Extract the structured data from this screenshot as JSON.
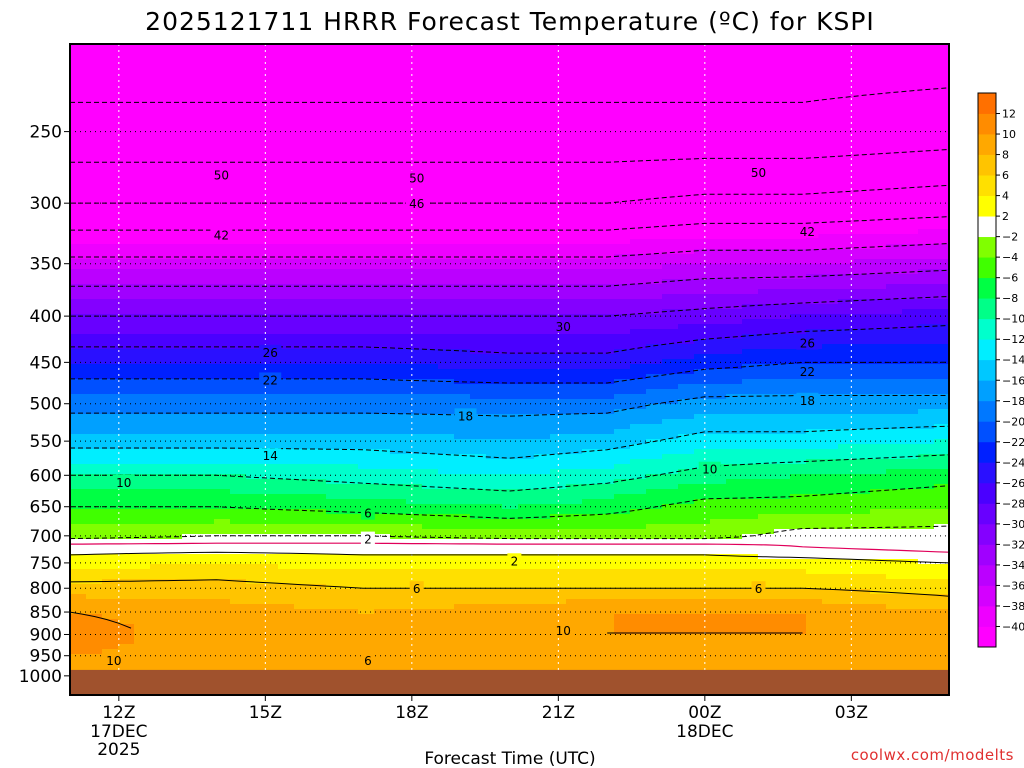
{
  "chart_data": {
    "type": "heatmap",
    "title": "2025121711 HRRR Forecast Temperature (ºC) for KSPI",
    "xlabel": "Forecast Time (UTC)",
    "ylabel": "",
    "credit": "coolwx.com/modelts",
    "x_range_hours": [
      -1,
      17
    ],
    "x_ticks": [
      {
        "h": 0,
        "label": "12Z",
        "sub1": "17DEC",
        "sub2": "2025"
      },
      {
        "h": 3,
        "label": "15Z",
        "sub1": "",
        "sub2": ""
      },
      {
        "h": 6,
        "label": "18Z",
        "sub1": "",
        "sub2": ""
      },
      {
        "h": 9,
        "label": "21Z",
        "sub1": "",
        "sub2": ""
      },
      {
        "h": 12,
        "label": "00Z",
        "sub1": "18DEC",
        "sub2": ""
      },
      {
        "h": 15,
        "label": "03Z",
        "sub1": "",
        "sub2": ""
      }
    ],
    "y_scale": "log",
    "y_range_hpa": [
      1050,
      200
    ],
    "y_ticks": [
      250,
      300,
      350,
      400,
      450,
      500,
      550,
      600,
      650,
      700,
      750,
      800,
      850,
      900,
      950,
      1000
    ],
    "surface_pressure_hpa": 985,
    "colorbar": {
      "levels": [
        -40,
        -38,
        -36,
        -34,
        -32,
        -30,
        -28,
        -26,
        -24,
        -22,
        -20,
        -18,
        -16,
        -14,
        -12,
        -10,
        -8,
        -6,
        -4,
        -2,
        2,
        4,
        6,
        8,
        10,
        12
      ],
      "colors": [
        "#ff00ff",
        "#ee00ff",
        "#d400ff",
        "#bb00ff",
        "#a000ff",
        "#8400ff",
        "#6800ff",
        "#4a00ff",
        "#2a10ff",
        "#0020ff",
        "#0050ff",
        "#0078ff",
        "#00a0ff",
        "#00c8ff",
        "#00eeff",
        "#00ffcc",
        "#00ff88",
        "#00ff44",
        "#40ff00",
        "#80ff00",
        "#ffffff",
        "#ffff00",
        "#ffe000",
        "#ffc400",
        "#ffa800",
        "#ff8c00",
        "#ff7000"
      ],
      "tick_labels": [
        "−40",
        "−38",
        "−36",
        "−34",
        "−32",
        "−30",
        "−28",
        "−26",
        "−24",
        "−22",
        "−20",
        "−18",
        "−16",
        "−14",
        "−12",
        "−10",
        "−8",
        "−6",
        "−4",
        "−2",
        "2",
        "4",
        "6",
        "8",
        "10",
        "12"
      ]
    },
    "profiles": {
      "hours": [
        -1,
        2,
        5,
        8,
        10,
        12,
        14,
        17
      ],
      "series": [
        {
          "p": 1000,
          "t": [
            10,
            10,
            9,
            9,
            9,
            9,
            9,
            9
          ]
        },
        {
          "p": 950,
          "t": [
            10,
            9,
            9,
            9,
            9,
            9,
            9,
            8
          ]
        },
        {
          "p": 900,
          "t": [
            11,
            9,
            8,
            9,
            10,
            10,
            10,
            8
          ]
        },
        {
          "p": 850,
          "t": [
            10,
            9,
            8,
            9,
            10,
            10,
            10,
            8
          ]
        },
        {
          "p": 800,
          "t": [
            7,
            7,
            6,
            6,
            6,
            6,
            6,
            5
          ]
        },
        {
          "p": 750,
          "t": [
            3,
            4,
            3,
            3,
            3,
            3,
            3,
            2
          ]
        },
        {
          "p": 720,
          "t": [
            1,
            1,
            1,
            1,
            1,
            1,
            0,
            -1
          ]
        },
        {
          "p": 700,
          "t": [
            -3,
            -2,
            -2,
            -3,
            -3,
            -3,
            -1,
            -1
          ]
        },
        {
          "p": 650,
          "t": [
            -6,
            -6,
            -7,
            -8,
            -7,
            -5,
            -5,
            -4
          ]
        },
        {
          "p": 600,
          "t": [
            -10,
            -10,
            -11,
            -12,
            -11,
            -9,
            -8,
            -7
          ]
        },
        {
          "p": 550,
          "t": [
            -15,
            -15,
            -15,
            -16,
            -15,
            -13,
            -13,
            -12
          ]
        },
        {
          "p": 500,
          "t": [
            -19,
            -19,
            -19,
            -19,
            -19,
            -17,
            -17,
            -17
          ]
        },
        {
          "p": 450,
          "t": [
            -24,
            -24,
            -24,
            -25,
            -25,
            -23,
            -22,
            -22
          ]
        },
        {
          "p": 400,
          "t": [
            -30,
            -30,
            -30,
            -30,
            -30,
            -29,
            -28,
            -27
          ]
        },
        {
          "p": 350,
          "t": [
            -37,
            -37,
            -37,
            -37,
            -37,
            -36,
            -36,
            -35
          ]
        },
        {
          "p": 300,
          "t": [
            -46,
            -46,
            -46,
            -46,
            -46,
            -45,
            -45,
            -44
          ]
        },
        {
          "p": 250,
          "t": [
            -53,
            -53,
            -53,
            -53,
            -53,
            -53,
            -53,
            -52
          ]
        },
        {
          "p": 200,
          "t": [
            -56,
            -56,
            -56,
            -56,
            -56,
            -56,
            -56,
            -56
          ]
        }
      ]
    },
    "contour_labels": [
      {
        "text": "50",
        "h": 2.1,
        "p": 279
      },
      {
        "text": "50",
        "h": 6.1,
        "p": 281
      },
      {
        "text": "50",
        "h": 13.1,
        "p": 277
      },
      {
        "text": "46",
        "h": 6.1,
        "p": 300
      },
      {
        "text": "42",
        "h": 2.1,
        "p": 325
      },
      {
        "text": "42",
        "h": 14.1,
        "p": 322
      },
      {
        "text": "30",
        "h": 9.1,
        "p": 410
      },
      {
        "text": "26",
        "h": 3.1,
        "p": 438
      },
      {
        "text": "26",
        "h": 14.1,
        "p": 428
      },
      {
        "text": "22",
        "h": 3.1,
        "p": 470
      },
      {
        "text": "22",
        "h": 14.1,
        "p": 460
      },
      {
        "text": "18",
        "h": 7.1,
        "p": 515
      },
      {
        "text": "18",
        "h": 14.1,
        "p": 495
      },
      {
        "text": "14",
        "h": 3.1,
        "p": 570
      },
      {
        "text": "10",
        "h": 0.1,
        "p": 610
      },
      {
        "text": "10",
        "h": 12.1,
        "p": 590
      },
      {
        "text": "6",
        "h": 5.1,
        "p": 660
      },
      {
        "text": "2",
        "h": 5.1,
        "p": 705
      },
      {
        "text": "2",
        "h": 8.1,
        "p": 745
      },
      {
        "text": "6",
        "h": 6.1,
        "p": 800
      },
      {
        "text": "6",
        "h": 13.1,
        "p": 800
      },
      {
        "text": "10",
        "h": 9.1,
        "p": 890
      },
      {
        "text": "10",
        "h": -0.1,
        "p": 960
      },
      {
        "text": "6",
        "h": 5.1,
        "p": 960
      }
    ]
  }
}
